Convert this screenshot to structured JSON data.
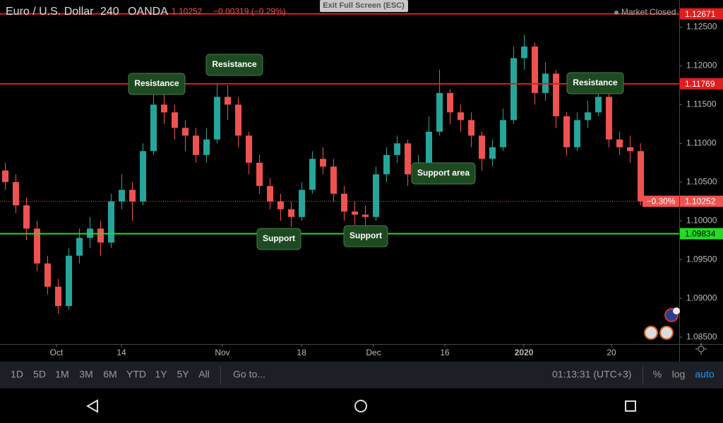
{
  "header": {
    "symbol": "Euro / U.S. Dollar",
    "interval": "240",
    "broker": "OANDA",
    "price": "1.10252",
    "change": "−0.00319 (−0.29%)",
    "exit_button": "Exit Full Screen (ESC)",
    "status": "Market Closed"
  },
  "chart_data": {
    "type": "candlestick",
    "open": [
      1.1065,
      1.105,
      1.102,
      1.099,
      1.0945,
      1.0915,
      1.089,
      1.0955,
      1.0978,
      1.099,
      1.0972,
      1.1025,
      1.104,
      1.1025,
      1.109,
      1.115,
      1.114,
      1.112,
      1.111,
      1.1085,
      1.1105,
      1.116,
      1.115,
      1.111,
      1.1075,
      1.1045,
      1.1025,
      1.1015,
      1.1005,
      1.104,
      1.108,
      1.107,
      1.1035,
      1.1012,
      1.1008,
      1.1005,
      1.106,
      1.1085,
      1.11,
      1.106,
      1.107,
      1.1115,
      1.1165,
      1.114,
      1.113,
      1.111,
      1.108,
      1.1095,
      1.113,
      1.121,
      1.1225,
      1.1165,
      1.119,
      1.1135,
      1.1095,
      1.113,
      1.114,
      1.116,
      1.1105,
      1.1095,
      1.109
    ],
    "high": [
      1.1075,
      1.106,
      1.103,
      1.1,
      1.0955,
      1.0925,
      1.0965,
      1.099,
      1.1005,
      1.1,
      1.1035,
      1.106,
      1.105,
      1.11,
      1.1175,
      1.1165,
      1.115,
      1.113,
      1.112,
      1.112,
      1.1178,
      1.1175,
      1.116,
      1.1115,
      1.1085,
      1.1055,
      1.1035,
      1.1025,
      1.105,
      1.109,
      1.1095,
      1.108,
      1.1045,
      1.1025,
      1.102,
      1.107,
      1.1095,
      1.111,
      1.1105,
      1.1085,
      1.1135,
      1.1195,
      1.117,
      1.115,
      1.114,
      1.1115,
      1.1105,
      1.1145,
      1.1225,
      1.124,
      1.123,
      1.1205,
      1.1195,
      1.114,
      1.114,
      1.1155,
      1.1175,
      1.1165,
      1.1115,
      1.111,
      1.11
    ],
    "low": [
      1.104,
      1.101,
      1.0975,
      1.0935,
      1.0905,
      1.088,
      1.0885,
      1.0945,
      1.0965,
      1.0955,
      1.0965,
      1.1015,
      1.1,
      1.102,
      1.1085,
      1.1125,
      1.1105,
      1.109,
      1.1075,
      1.1075,
      1.11,
      1.113,
      1.1095,
      1.106,
      1.1035,
      1.1015,
      1.1,
      1.0992,
      1.1,
      1.1035,
      1.106,
      1.1025,
      1.1,
      1.0995,
      1.099,
      1.1,
      1.105,
      1.1075,
      1.1045,
      1.1055,
      1.1065,
      1.111,
      1.1125,
      1.1115,
      1.1095,
      1.1065,
      1.107,
      1.109,
      1.1125,
      1.1195,
      1.115,
      1.1155,
      1.112,
      1.1085,
      1.109,
      1.112,
      1.1135,
      1.1095,
      1.1085,
      1.1075,
      1.102
    ],
    "close": [
      1.105,
      1.102,
      1.099,
      1.0945,
      1.0915,
      1.089,
      1.0955,
      1.0978,
      1.099,
      1.0972,
      1.1025,
      1.104,
      1.1025,
      1.109,
      1.115,
      1.114,
      1.112,
      1.111,
      1.1085,
      1.1105,
      1.116,
      1.115,
      1.111,
      1.1075,
      1.1045,
      1.1025,
      1.1015,
      1.1005,
      1.104,
      1.108,
      1.107,
      1.1035,
      1.1012,
      1.1008,
      1.1005,
      1.106,
      1.1085,
      1.11,
      1.106,
      1.107,
      1.1115,
      1.1165,
      1.114,
      1.113,
      1.111,
      1.108,
      1.1095,
      1.113,
      1.121,
      1.1225,
      1.1165,
      1.119,
      1.1135,
      1.1095,
      1.113,
      1.114,
      1.116,
      1.1105,
      1.1095,
      1.109,
      1.10252
    ],
    "up_color": "#26a69a",
    "down_color": "#ef5350",
    "xlim": [
      -0.5,
      63.63
    ],
    "xticks": [
      {
        "value": 4.83,
        "label": "Oct"
      },
      {
        "value": 10.97,
        "label": "14"
      },
      {
        "value": 20.5,
        "label": "Nov"
      },
      {
        "value": 27.97,
        "label": "18"
      },
      {
        "value": 34.77,
        "label": "Dec"
      },
      {
        "value": 41.5,
        "label": "16"
      },
      {
        "value": 48.97,
        "label": "2020"
      },
      {
        "value": 57.23,
        "label": "20"
      }
    ],
    "ylim": [
      1.0841,
      1.1285
    ],
    "yticks": [
      {
        "value": 1.085,
        "label": "1.08500"
      },
      {
        "value": 1.09,
        "label": "1.09000"
      },
      {
        "value": 1.095,
        "label": "1.09500"
      },
      {
        "value": 1.1,
        "label": "1.10000"
      },
      {
        "value": 1.105,
        "label": "1.10500"
      },
      {
        "value": 1.11,
        "label": "1.11000"
      },
      {
        "value": 1.115,
        "label": "1.11500"
      },
      {
        "value": 1.12,
        "label": "1.12000"
      },
      {
        "value": 1.125,
        "label": "1.12500"
      }
    ],
    "levels": [
      {
        "value": 1.12671,
        "color": "#e01e1e",
        "style": "solid"
      },
      {
        "value": 1.11769,
        "color": "#e01e1e",
        "style": "solid"
      },
      {
        "value": 1.09834,
        "color": "#22dd22",
        "style": "solid"
      },
      {
        "value": 1.10252,
        "color": "#ef5350",
        "style": "dotted",
        "note": "−0.30%"
      }
    ],
    "annotations": [
      "Resistance",
      "Resistance",
      "Support",
      "Support",
      "Support area",
      "Resistance"
    ]
  },
  "toolbar": {
    "ranges": [
      "1D",
      "5D",
      "1M",
      "3M",
      "6M",
      "YTD",
      "1Y",
      "5Y",
      "All"
    ],
    "goto": "Go to...",
    "clock": "01:13:31 (UTC+3)",
    "options": [
      "%",
      "log",
      "auto"
    ]
  }
}
